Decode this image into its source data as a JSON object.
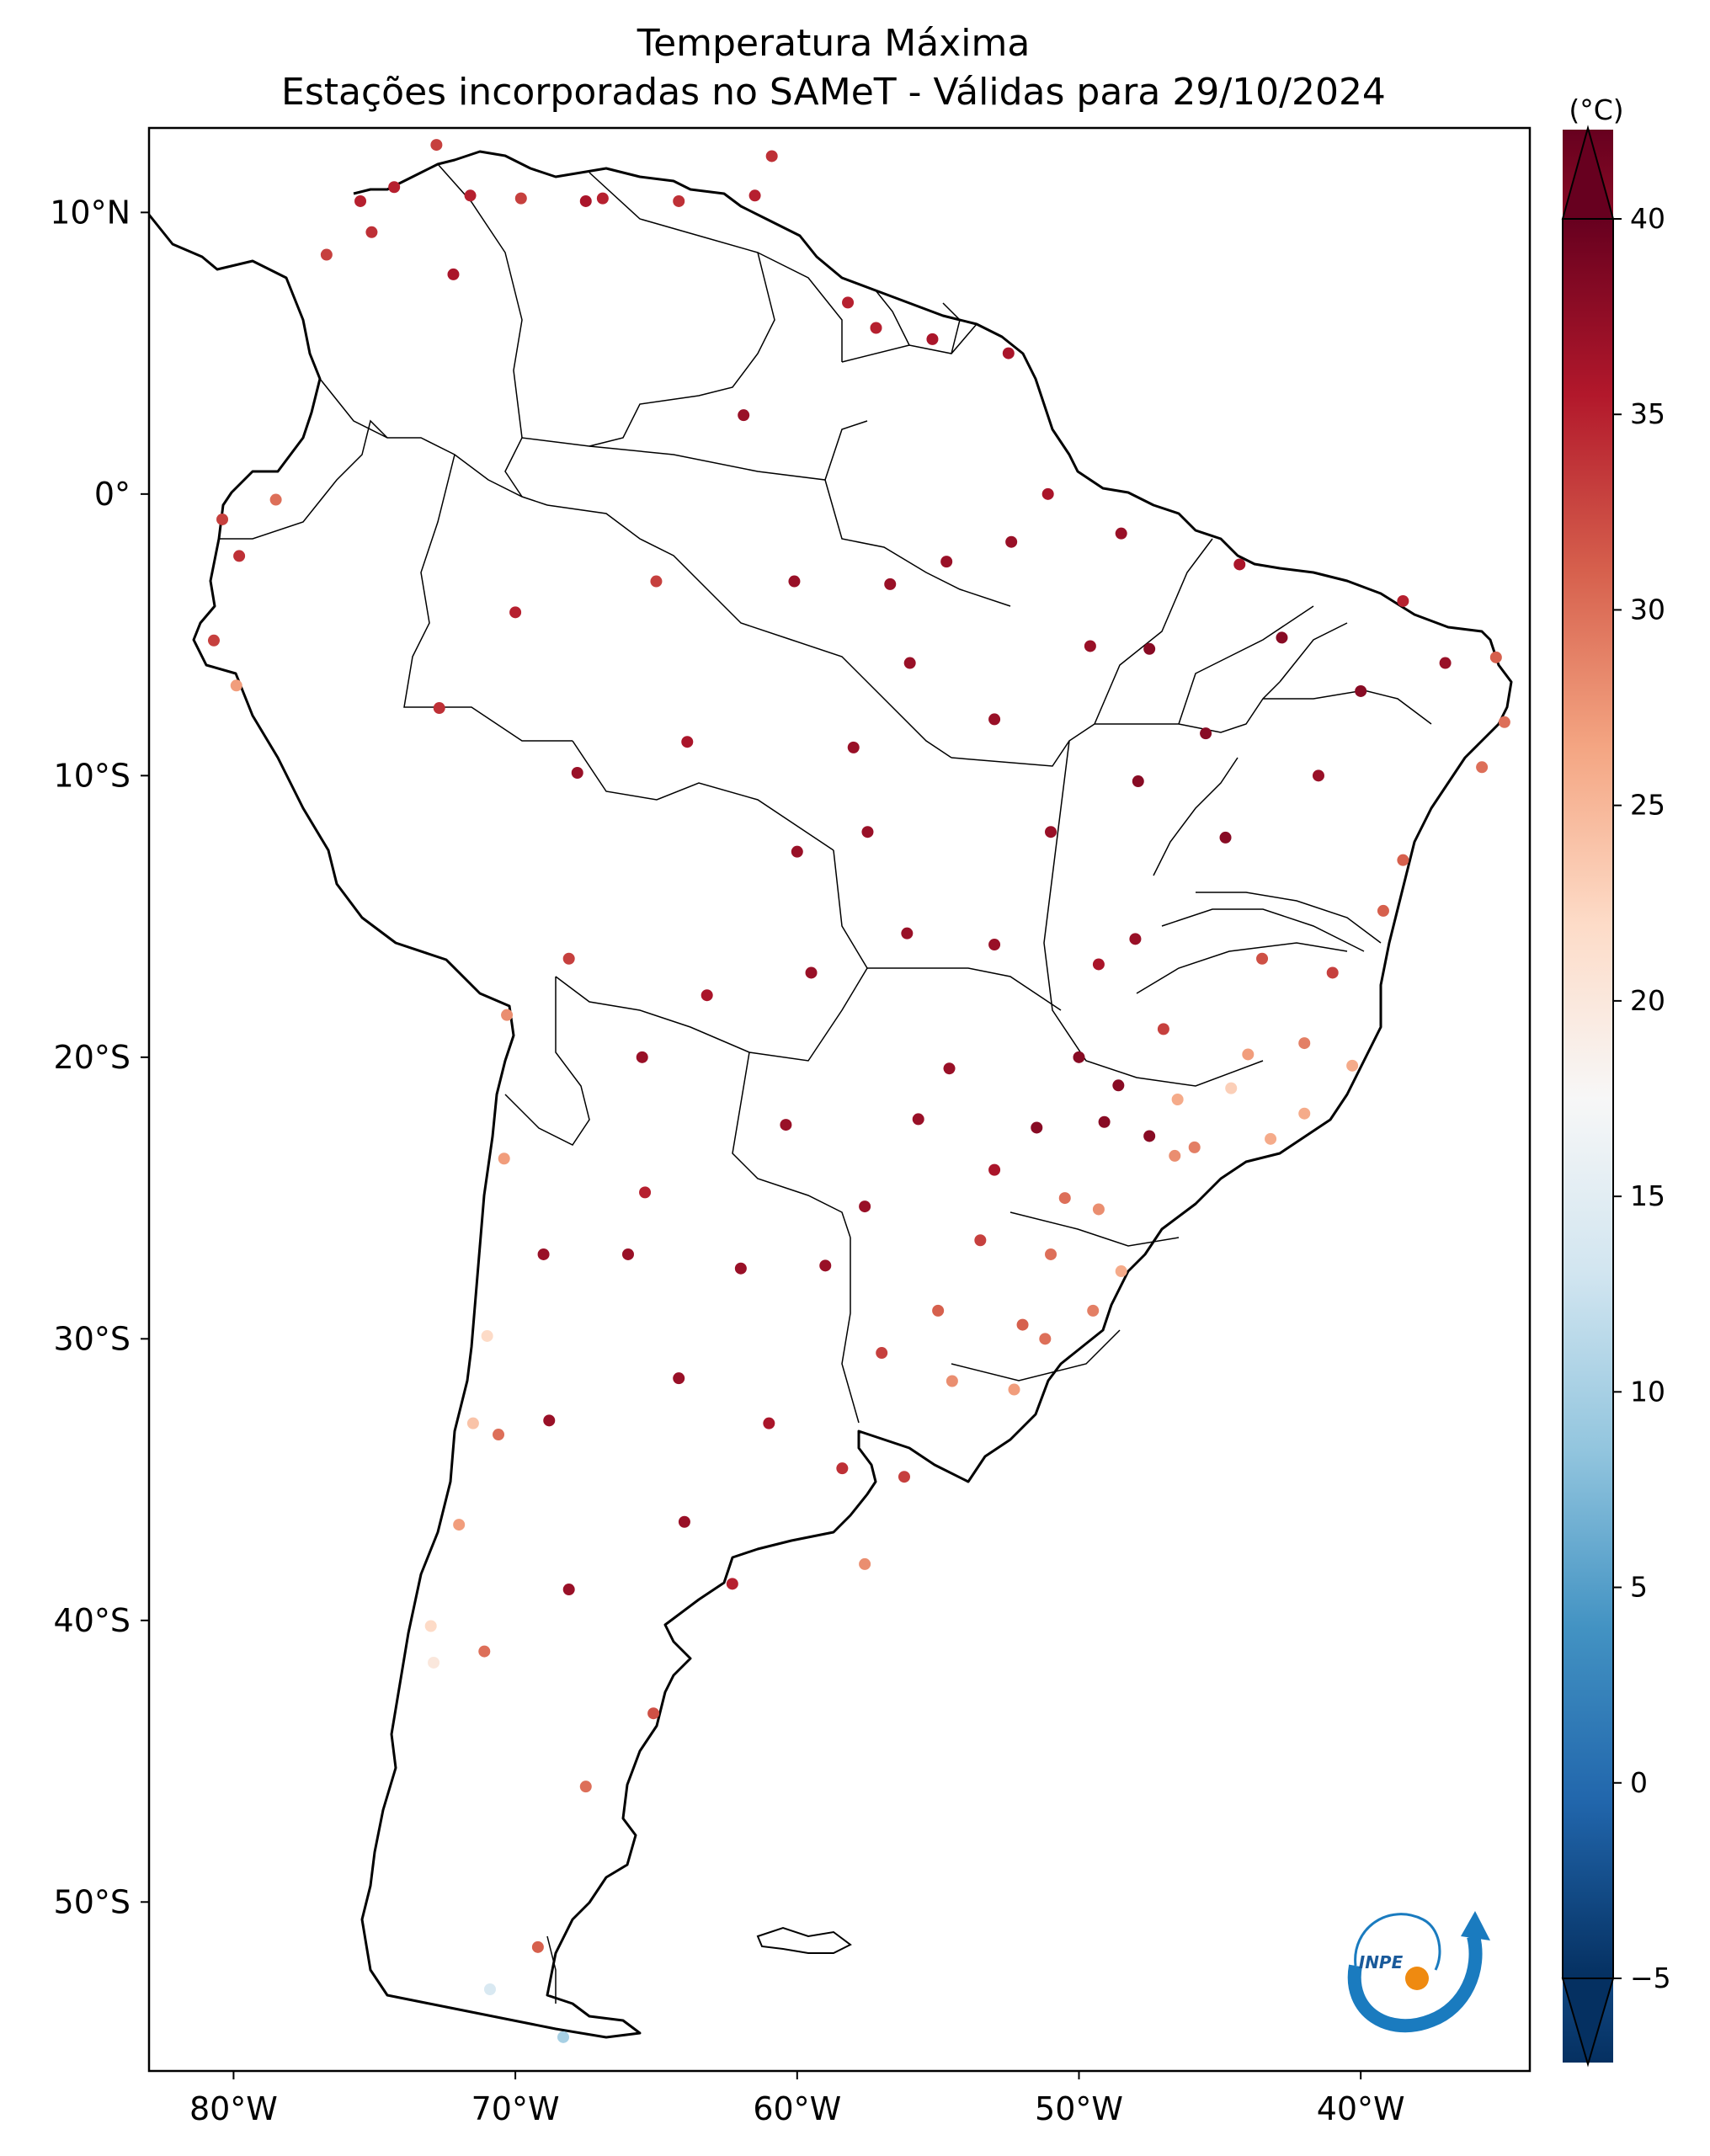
{
  "title": {
    "line1": "Temperatura Máxima",
    "line2": "Estações incorporadas no SAMeT - Válidas para 29/10/2024"
  },
  "map": {
    "lat_labels": [
      "10°N",
      "0°",
      "10°S",
      "20°S",
      "30°S",
      "40°S",
      "50°S"
    ],
    "lon_labels": [
      "80°W",
      "70°W",
      "60°W",
      "50°W",
      "40°W"
    ],
    "extent": {
      "lon": [
        -83,
        -34
      ],
      "lat": [
        -56,
        13
      ]
    }
  },
  "colorbar": {
    "unit": "(°C)",
    "min": -5,
    "max": 40,
    "ticks": [
      "−5",
      "0",
      "5",
      "10",
      "15",
      "20",
      "25",
      "30",
      "35",
      "40"
    ],
    "colors": [
      "#053061",
      "#2166ac",
      "#4393c3",
      "#92c5de",
      "#d1e5f0",
      "#f7f7f7",
      "#fddbc7",
      "#f4a582",
      "#d6604d",
      "#b2182b",
      "#67001f"
    ]
  },
  "logo": {
    "text": "INPE"
  },
  "stations": [
    {
      "lon": -79.8,
      "lat": -2.2,
      "t": 34
    },
    {
      "lon": -78.5,
      "lat": -0.2,
      "t": 30
    },
    {
      "lon": -80.4,
      "lat": -0.9,
      "t": 33
    },
    {
      "lon": -80.7,
      "lat": -5.2,
      "t": 33
    },
    {
      "lon": -79.9,
      "lat": -6.8,
      "t": 27
    },
    {
      "lon": -74.3,
      "lat": 10.9,
      "t": 35
    },
    {
      "lon": -75.5,
      "lat": 10.4,
      "t": 35
    },
    {
      "lon": -72.2,
      "lat": 7.8,
      "t": 36
    },
    {
      "lon": -71.6,
      "lat": 10.6,
      "t": 35
    },
    {
      "lon": -67.5,
      "lat": 10.4,
      "t": 36
    },
    {
      "lon": -66.9,
      "lat": 10.5,
      "t": 35
    },
    {
      "lon": -64.2,
      "lat": 10.4,
      "t": 34
    },
    {
      "lon": -61.5,
      "lat": 10.6,
      "t": 35
    },
    {
      "lon": -60.9,
      "lat": 12.0,
      "t": 34
    },
    {
      "lon": -75.1,
      "lat": 9.3,
      "t": 34
    },
    {
      "lon": -69.8,
      "lat": 10.5,
      "t": 33
    },
    {
      "lon": -72.8,
      "lat": 12.4,
      "t": 33
    },
    {
      "lon": -76.7,
      "lat": 8.5,
      "t": 33
    },
    {
      "lon": -61.9,
      "lat": 2.8,
      "t": 37
    },
    {
      "lon": -60.1,
      "lat": -3.1,
      "t": 37
    },
    {
      "lon": -56.7,
      "lat": -3.2,
      "t": 37
    },
    {
      "lon": -54.7,
      "lat": -2.4,
      "t": 37
    },
    {
      "lon": -52.4,
      "lat": -1.7,
      "t": 37
    },
    {
      "lon": -48.5,
      "lat": -1.4,
      "t": 37
    },
    {
      "lon": -51.1,
      "lat": -0.0,
      "t": 36
    },
    {
      "lon": -52.5,
      "lat": 5.0,
      "t": 36
    },
    {
      "lon": -55.2,
      "lat": 5.5,
      "t": 36
    },
    {
      "lon": -57.2,
      "lat": 5.9,
      "t": 35
    },
    {
      "lon": -58.2,
      "lat": 6.8,
      "t": 35
    },
    {
      "lon": -49.6,
      "lat": -5.4,
      "t": 37
    },
    {
      "lon": -47.5,
      "lat": -5.5,
      "t": 38
    },
    {
      "lon": -44.3,
      "lat": -2.5,
      "t": 36
    },
    {
      "lon": -42.8,
      "lat": -5.1,
      "t": 38
    },
    {
      "lon": -38.5,
      "lat": -3.8,
      "t": 35
    },
    {
      "lon": -35.2,
      "lat": -5.8,
      "t": 31
    },
    {
      "lon": -34.9,
      "lat": -8.1,
      "t": 30
    },
    {
      "lon": -35.7,
      "lat": -9.7,
      "t": 30
    },
    {
      "lon": -38.5,
      "lat": -13.0,
      "t": 31
    },
    {
      "lon": -40.3,
      "lat": -20.3,
      "t": 26
    },
    {
      "lon": -43.2,
      "lat": -22.9,
      "t": 26
    },
    {
      "lon": -46.6,
      "lat": -23.5,
      "t": 28
    },
    {
      "lon": -49.3,
      "lat": -25.4,
      "t": 28
    },
    {
      "lon": -48.5,
      "lat": -27.6,
      "t": 26
    },
    {
      "lon": -51.2,
      "lat": -30.0,
      "t": 30
    },
    {
      "lon": -52.3,
      "lat": -31.8,
      "t": 27
    },
    {
      "lon": -56.2,
      "lat": -34.9,
      "t": 33
    },
    {
      "lon": -58.4,
      "lat": -34.6,
      "t": 34
    },
    {
      "lon": -57.6,
      "lat": -38.0,
      "t": 28
    },
    {
      "lon": -62.3,
      "lat": -38.7,
      "t": 35
    },
    {
      "lon": -64.2,
      "lat": -31.4,
      "t": 37
    },
    {
      "lon": -68.8,
      "lat": -32.9,
      "t": 37
    },
    {
      "lon": -65.4,
      "lat": -24.8,
      "t": 35
    },
    {
      "lon": -60.4,
      "lat": -22.4,
      "t": 37
    },
    {
      "lon": -57.6,
      "lat": -25.3,
      "t": 37
    },
    {
      "lon": -63.2,
      "lat": -17.8,
      "t": 36
    },
    {
      "lon": -68.1,
      "lat": -16.5,
      "t": 33
    },
    {
      "lon": -70.3,
      "lat": -18.5,
      "t": 28
    },
    {
      "lon": -71.5,
      "lat": -33.0,
      "t": 24
    },
    {
      "lon": -70.6,
      "lat": -33.4,
      "t": 30
    },
    {
      "lon": -72.0,
      "lat": -36.6,
      "t": 27
    },
    {
      "lon": -73.0,
      "lat": -40.2,
      "t": 22
    },
    {
      "lon": -72.9,
      "lat": -41.5,
      "t": 20
    },
    {
      "lon": -70.9,
      "lat": -53.1,
      "t": 14
    },
    {
      "lon": -68.3,
      "lat": -54.8,
      "t": 10
    },
    {
      "lon": -69.2,
      "lat": -51.6,
      "t": 31
    },
    {
      "lon": -65.1,
      "lat": -43.3,
      "t": 32
    },
    {
      "lon": -67.5,
      "lat": -45.9,
      "t": 30
    },
    {
      "lon": -71.1,
      "lat": -41.1,
      "t": 30
    },
    {
      "lon": -68.1,
      "lat": -38.9,
      "t": 37
    },
    {
      "lon": -60.0,
      "lat": -12.7,
      "t": 37
    },
    {
      "lon": -63.9,
      "lat": -8.8,
      "t": 36
    },
    {
      "lon": -67.8,
      "lat": -9.9,
      "t": 37
    },
    {
      "lon": -72.7,
      "lat": -7.6,
      "t": 34
    },
    {
      "lon": -70.0,
      "lat": -4.2,
      "t": 35
    },
    {
      "lon": -65.0,
      "lat": -3.1,
      "t": 33
    },
    {
      "lon": -56.1,
      "lat": -15.6,
      "t": 37
    },
    {
      "lon": -54.6,
      "lat": -20.4,
      "t": 37
    },
    {
      "lon": -55.7,
      "lat": -22.2,
      "t": 37
    },
    {
      "lon": -48.0,
      "lat": -15.8,
      "t": 37
    },
    {
      "lon": -49.3,
      "lat": -16.7,
      "t": 36
    },
    {
      "lon": -47.9,
      "lat": -10.2,
      "t": 38
    },
    {
      "lon": -44.0,
      "lat": -19.9,
      "t": 27
    },
    {
      "lon": -44.6,
      "lat": -21.1,
      "t": 23
    },
    {
      "lon": -41.0,
      "lat": -17.0,
      "t": 33
    },
    {
      "lon": -53.0,
      "lat": -24.0,
      "t": 36
    },
    {
      "lon": -51.5,
      "lat": -22.5,
      "t": 38
    },
    {
      "lon": -49.1,
      "lat": -22.3,
      "t": 38
    },
    {
      "lon": -47.5,
      "lat": -22.8,
      "t": 38
    },
    {
      "lon": -45.9,
      "lat": -23.2,
      "t": 29
    },
    {
      "lon": -48.6,
      "lat": -21.0,
      "t": 38
    },
    {
      "lon": -46.5,
      "lat": -21.5,
      "t": 26
    },
    {
      "lon": -53.5,
      "lat": -26.5,
      "t": 33
    },
    {
      "lon": -51.0,
      "lat": -27.0,
      "t": 30
    },
    {
      "lon": -55.0,
      "lat": -29.0,
      "t": 31
    },
    {
      "lon": -54.5,
      "lat": -31.5,
      "t": 28
    },
    {
      "lon": -57.0,
      "lat": -30.5,
      "t": 33
    },
    {
      "lon": -64.0,
      "lat": -36.5,
      "t": 37
    },
    {
      "lon": -61.0,
      "lat": -33.0,
      "t": 36
    },
    {
      "lon": -66.0,
      "lat": -27.0,
      "t": 37
    },
    {
      "lon": -62.0,
      "lat": -27.5,
      "t": 37
    },
    {
      "lon": -59.0,
      "lat": -27.4,
      "t": 37
    },
    {
      "lon": -65.5,
      "lat": -20.0,
      "t": 37
    },
    {
      "lon": -40.0,
      "lat": -7.0,
      "t": 38
    },
    {
      "lon": -37.0,
      "lat": -6.0,
      "t": 37
    },
    {
      "lon": -41.5,
      "lat": -10.0,
      "t": 37
    },
    {
      "lon": -44.8,
      "lat": -12.2,
      "t": 38
    },
    {
      "lon": -39.2,
      "lat": -14.8,
      "t": 31
    },
    {
      "lon": -43.5,
      "lat": -16.5,
      "t": 32
    },
    {
      "lon": -45.5,
      "lat": -8.5,
      "t": 38
    },
    {
      "lon": -51.0,
      "lat": -12.0,
      "t": 37
    },
    {
      "lon": -53.0,
      "lat": -16.0,
      "t": 37
    },
    {
      "lon": -57.5,
      "lat": -12.0,
      "t": 37
    },
    {
      "lon": -59.5,
      "lat": -17.0,
      "t": 37
    },
    {
      "lon": -50.0,
      "lat": -20.0,
      "t": 38
    },
    {
      "lon": -47.0,
      "lat": -19.0,
      "t": 33
    },
    {
      "lon": -42.0,
      "lat": -19.5,
      "t": 29
    },
    {
      "lon": -42.0,
      "lat": -22.0,
      "t": 26
    },
    {
      "lon": -50.5,
      "lat": -25.0,
      "t": 30
    },
    {
      "lon": -52.0,
      "lat": -29.5,
      "t": 31
    },
    {
      "lon": -49.5,
      "lat": -29.0,
      "t": 29
    },
    {
      "lon": -71.0,
      "lat": -29.9,
      "t": 22
    },
    {
      "lon": -70.4,
      "lat": -23.6,
      "t": 27
    },
    {
      "lon": -69.0,
      "lat": -27.0,
      "t": 37
    },
    {
      "lon": -58.0,
      "lat": -9.0,
      "t": 37
    },
    {
      "lon": -56.0,
      "lat": -6.0,
      "t": 37
    },
    {
      "lon": -53.0,
      "lat": -8.0,
      "t": 37
    }
  ]
}
